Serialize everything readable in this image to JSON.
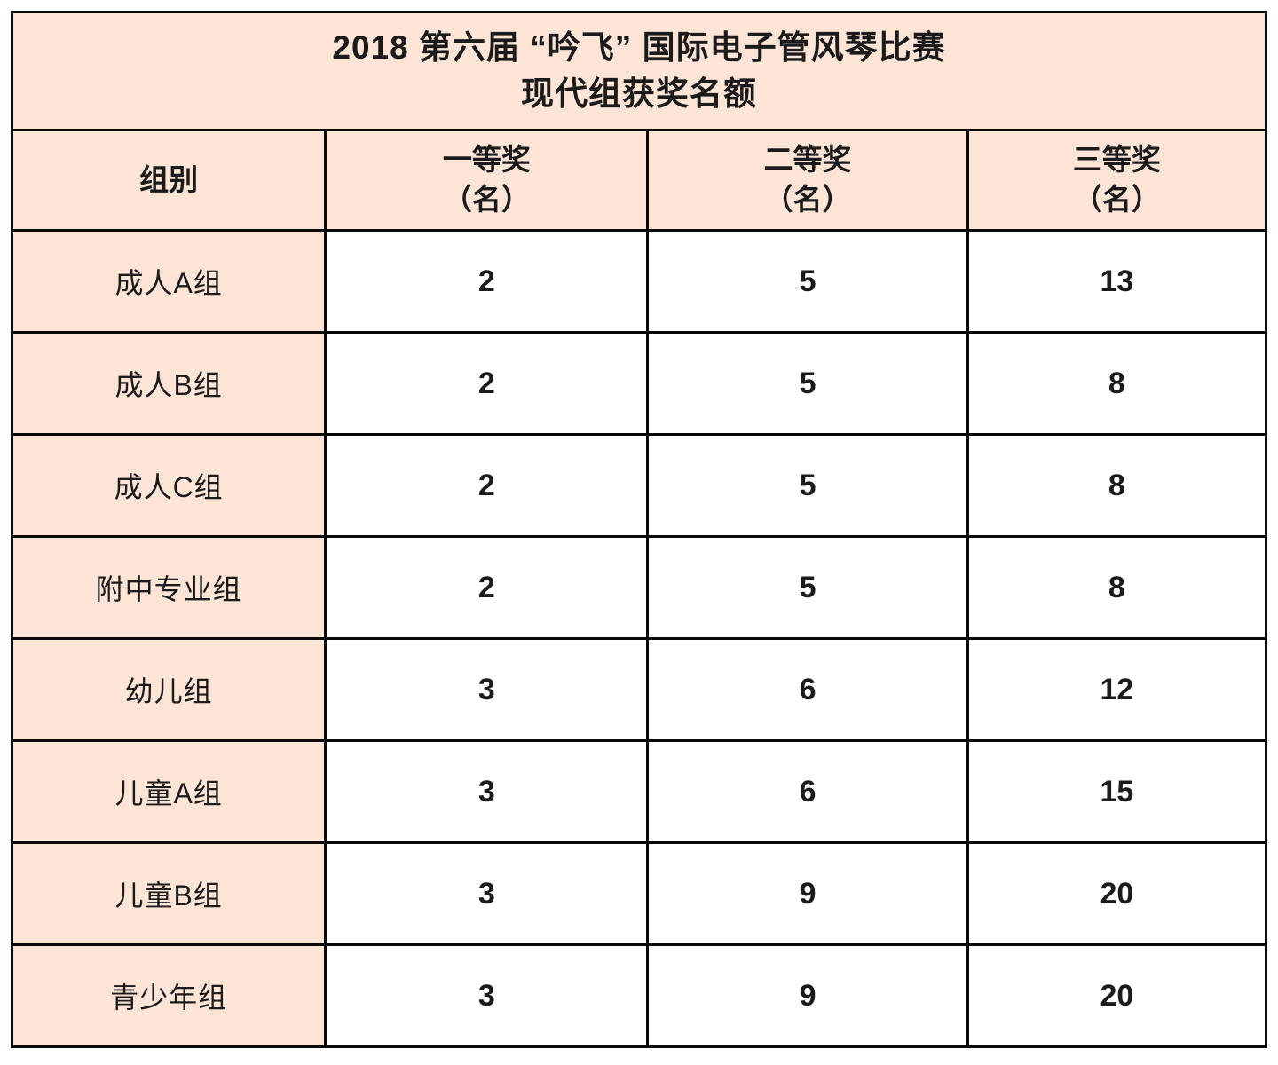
{
  "title": {
    "line1": "2018 第六届 “吟飞” 国际电子管风琴比赛",
    "line2": "现代组获奖名额"
  },
  "table": {
    "headers": {
      "group": "组别",
      "first": {
        "label": "一等奖",
        "unit": "（名）"
      },
      "second": {
        "label": "二等奖",
        "unit": "（名）"
      },
      "third": {
        "label": "三等奖",
        "unit": "（名）"
      }
    },
    "rows": [
      {
        "group": "成人A组",
        "first": "2",
        "second": "5",
        "third": "13"
      },
      {
        "group": "成人B组",
        "first": "2",
        "second": "5",
        "third": "8"
      },
      {
        "group": "成人C组",
        "first": "2",
        "second": "5",
        "third": "8"
      },
      {
        "group": "附中专业组",
        "first": "2",
        "second": "5",
        "third": "8"
      },
      {
        "group": "幼儿组",
        "first": "3",
        "second": "6",
        "third": "12"
      },
      {
        "group": "儿童A组",
        "first": "3",
        "second": "6",
        "third": "15"
      },
      {
        "group": "儿童B组",
        "first": "3",
        "second": "9",
        "third": "20"
      },
      {
        "group": "青少年组",
        "first": "3",
        "second": "9",
        "third": "20"
      }
    ]
  },
  "colors": {
    "header_fill": "#fce4d6",
    "data_fill": "#ffffff",
    "border": "#0a0a0a",
    "text": "#1b1b1b",
    "page_background": "#ffffff"
  },
  "chart_data": {
    "type": "table",
    "title": "2018 第六届 “吟飞” 国际电子管风琴比赛 现代组获奖名额",
    "columns": [
      "组别",
      "一等奖（名）",
      "二等奖（名）",
      "三等奖（名）"
    ],
    "categories": [
      "成人A组",
      "成人B组",
      "成人C组",
      "附中专业组",
      "幼儿组",
      "儿童A组",
      "儿童B组",
      "青少年组"
    ],
    "series": [
      {
        "name": "一等奖（名）",
        "values": [
          2,
          2,
          2,
          2,
          3,
          3,
          3,
          3
        ]
      },
      {
        "name": "二等奖（名）",
        "values": [
          5,
          5,
          5,
          5,
          6,
          6,
          9,
          9
        ]
      },
      {
        "name": "三等奖（名）",
        "values": [
          13,
          8,
          8,
          8,
          12,
          15,
          20,
          20
        ]
      }
    ],
    "layout_hints": {
      "header_fill": "#fce4d6",
      "first_column_fill": "#fce4d6",
      "grid": "on",
      "title_position": "merged-top-row"
    }
  }
}
